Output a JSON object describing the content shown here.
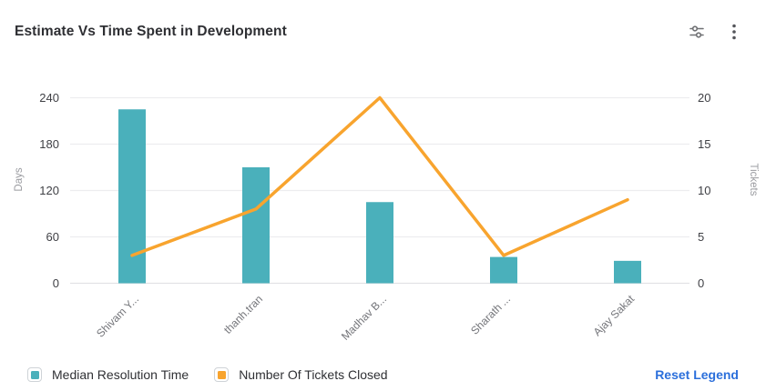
{
  "header": {
    "title": "Estimate Vs Time Spent in Development",
    "settings_icon": "sliders-icon",
    "menu_icon": "kebab-menu-icon"
  },
  "chart_data": {
    "type": "combo",
    "categories": [
      "Shivam Y...",
      "thanh.tran",
      "Madhav B...",
      "Sharath ...",
      "Ajay Sakat"
    ],
    "series": [
      {
        "name": "Median Resolution Time",
        "type": "bar",
        "axis": "left",
        "color": "#4AB0BB",
        "values": [
          225,
          150,
          105,
          34,
          29
        ]
      },
      {
        "name": "Number Of Tickets Closed",
        "type": "line",
        "axis": "right",
        "color": "#F8A42E",
        "values": [
          3,
          8,
          20,
          3,
          9
        ]
      }
    ],
    "y_left": {
      "label": "Days",
      "ticks": [
        0,
        60,
        120,
        180,
        240
      ],
      "max": 240
    },
    "y_right": {
      "label": "Tickets",
      "ticks": [
        0,
        5,
        10,
        15,
        20
      ],
      "max": 20
    },
    "grid": true,
    "legend_position": "bottom"
  },
  "legend": {
    "items": [
      {
        "label": "Median Resolution Time",
        "color": "#4AB0BB"
      },
      {
        "label": "Number Of Tickets Closed",
        "color": "#F8A42E"
      }
    ],
    "reset_label": "Reset Legend"
  },
  "colors": {
    "link": "#2B6FDB",
    "grid": "#EDEDEF",
    "axis_line": "#E2E2E5",
    "tick_text": "#3F4045",
    "axis_name": "#9A9BA0",
    "x_label": "#737479",
    "icon": "#6F7073"
  }
}
